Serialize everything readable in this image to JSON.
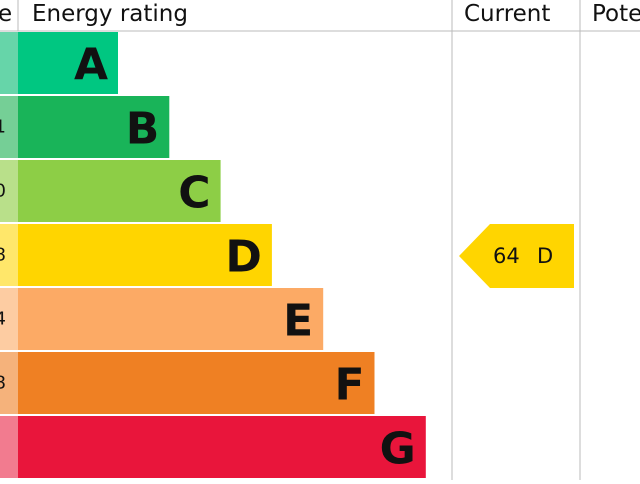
{
  "header": {
    "score": "e",
    "rating": "Energy rating",
    "current": "Current",
    "potential": "Pote"
  },
  "bands": [
    {
      "letter": "A",
      "score": null
    },
    {
      "letter": "B",
      "score": "1"
    },
    {
      "letter": "C",
      "score": "0"
    },
    {
      "letter": "D",
      "score": "8"
    },
    {
      "letter": "E",
      "score": "4"
    },
    {
      "letter": "F",
      "score": "8"
    },
    {
      "letter": "G",
      "score": null
    }
  ],
  "current": {
    "score": "64",
    "band": "D"
  }
}
